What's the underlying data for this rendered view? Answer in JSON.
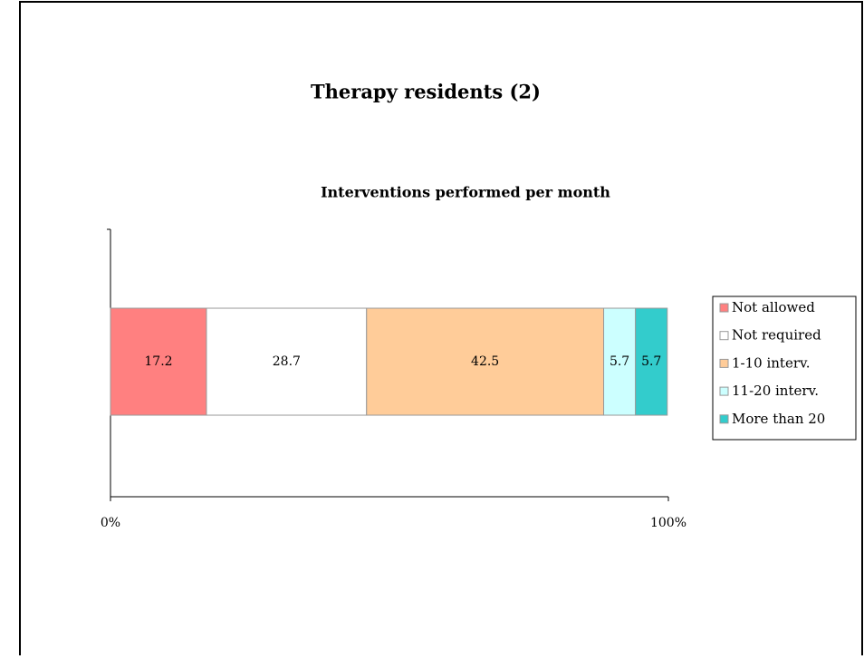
{
  "title": "Therapy residents (2)",
  "chart_data": {
    "type": "bar",
    "orientation": "horizontal",
    "stacked": true,
    "title": "Interventions performed per month",
    "categories": [
      null
    ],
    "series": [
      {
        "name": "Not allowed",
        "color": "#ff8080",
        "values": [
          17.2
        ]
      },
      {
        "name": "Not required",
        "color": "#ffffff",
        "values": [
          28.7
        ]
      },
      {
        "name": "1-10 interv.",
        "color": "#ffcc99",
        "values": [
          42.5
        ]
      },
      {
        "name": "11-20 interv.",
        "color": "#ccffff",
        "values": [
          5.7
        ]
      },
      {
        "name": "More than 20",
        "color": "#33cccc",
        "values": [
          5.7
        ]
      }
    ],
    "xlim": [
      0,
      100
    ],
    "xticks": [
      {
        "value": 0,
        "label": "0%"
      },
      {
        "value": 100,
        "label": "100%"
      }
    ],
    "legend": "right"
  }
}
